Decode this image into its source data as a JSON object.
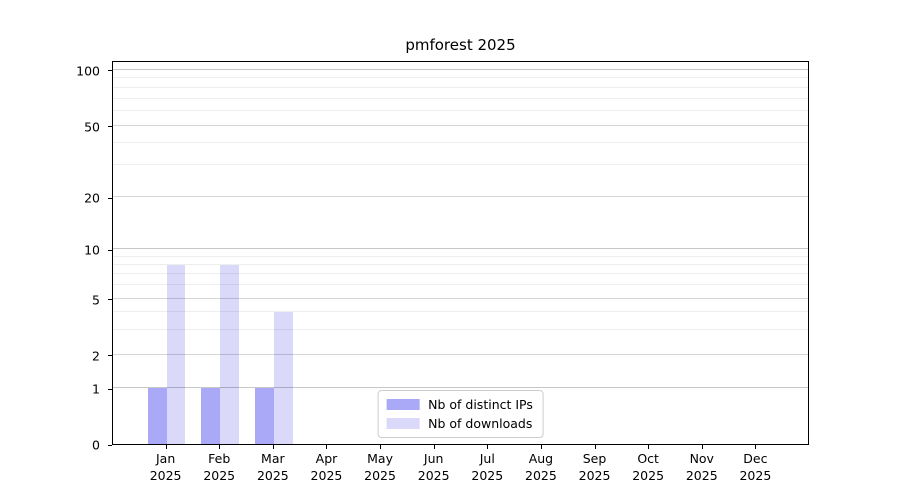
{
  "title": "pmforest 2025",
  "chart_data": {
    "type": "bar",
    "title": "pmforest 2025",
    "categories": [
      "Jan",
      "Feb",
      "Mar",
      "Apr",
      "May",
      "Jun",
      "Jul",
      "Aug",
      "Sep",
      "Oct",
      "Nov",
      "Dec"
    ],
    "category_year": "2025",
    "series": [
      {
        "name": "Nb of distinct IPs",
        "color": "#aaa9f7",
        "values": [
          1,
          1,
          1,
          0,
          0,
          0,
          0,
          0,
          0,
          0,
          0,
          0
        ]
      },
      {
        "name": "Nb of downloads",
        "color": "#dad9f9",
        "values": [
          8,
          8,
          4,
          0,
          0,
          0,
          0,
          0,
          0,
          0,
          0,
          0
        ]
      }
    ],
    "xlabel": "",
    "ylabel": "",
    "yscale": "symlog",
    "yticks": [
      0,
      1,
      2,
      5,
      10,
      20,
      50,
      100
    ],
    "yticks_minor": [
      3,
      4,
      6,
      7,
      8,
      9,
      30,
      40,
      60,
      70,
      80,
      90
    ],
    "ylim": [
      0,
      110
    ],
    "grid": true,
    "legend_position": "lower center"
  }
}
